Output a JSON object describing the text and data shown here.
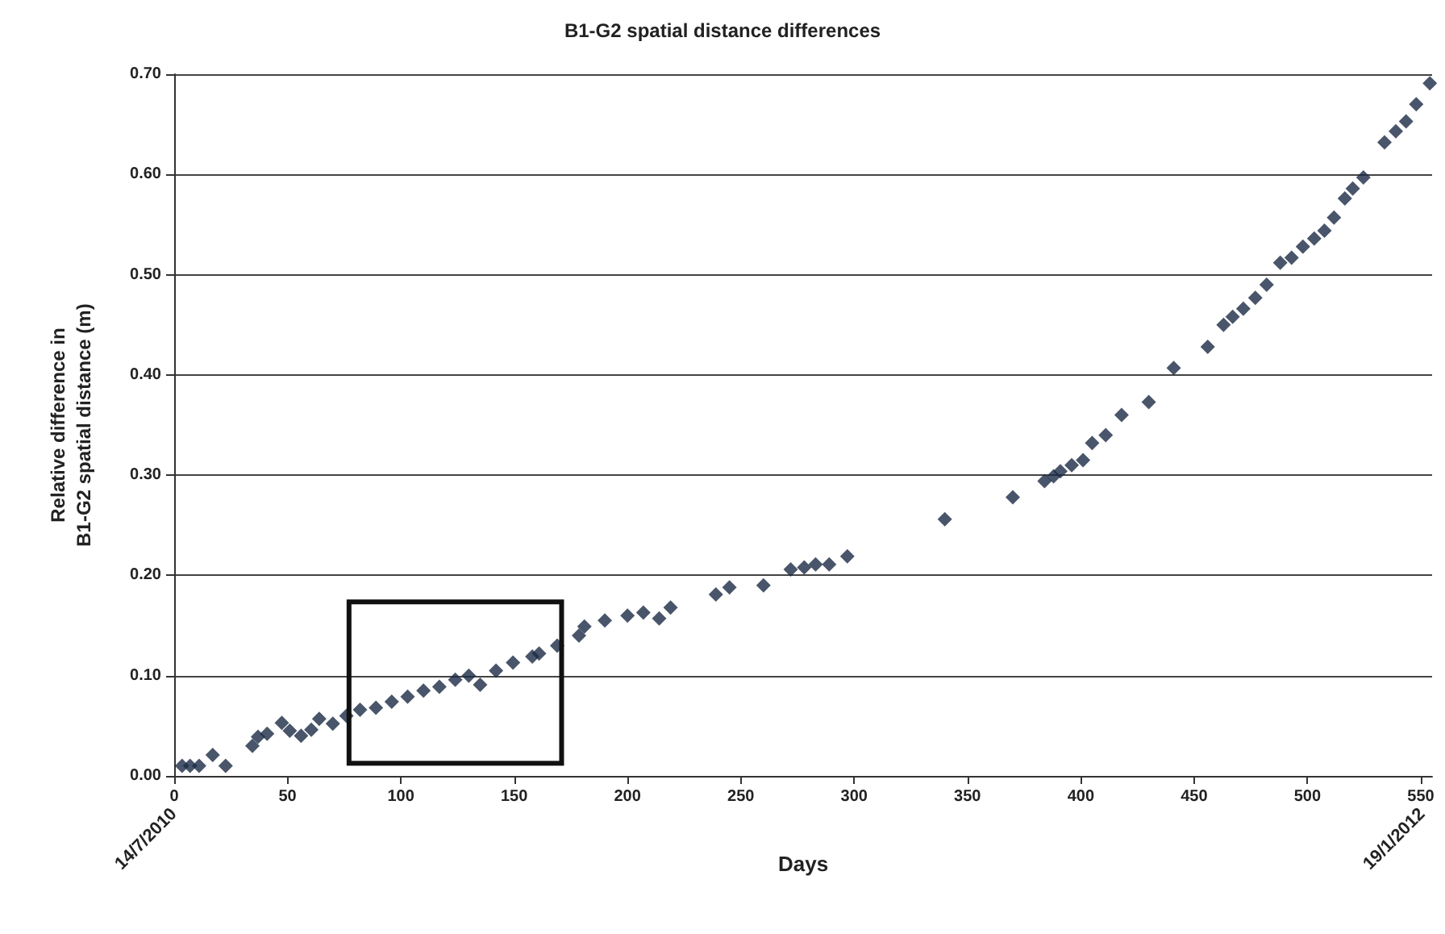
{
  "chart_data": {
    "type": "scatter",
    "title": "B1-G2 spatial distance differences",
    "xlabel": "Days",
    "ylabel": "Relative difference in B1-G2 spatial distance (m)",
    "x": [
      3.5,
      7,
      11,
      17,
      22.7,
      34.5,
      37,
      41,
      47.5,
      51,
      56,
      60.5,
      64,
      70,
      76,
      82,
      89,
      96,
      103,
      110,
      117,
      124,
      130,
      135,
      142,
      149.5,
      158,
      161,
      169,
      178.6,
      181,
      190,
      200,
      207,
      214,
      219,
      239,
      245,
      260,
      272,
      278,
      283,
      289,
      297,
      340,
      370,
      384,
      388,
      391,
      396,
      401,
      405,
      411,
      418,
      430,
      441,
      456,
      463,
      467,
      471.7,
      477,
      482,
      488,
      493,
      498,
      503,
      507.5,
      511.7,
      516.5,
      520,
      524.7,
      534,
      539,
      543.5,
      548,
      554
    ],
    "values": [
      0.01,
      0.01,
      0.01,
      0.021,
      0.01,
      0.03,
      0.039,
      0.042,
      0.053,
      0.045,
      0.04,
      0.046,
      0.057,
      0.052,
      0.06,
      0.066,
      0.068,
      0.074,
      0.079,
      0.085,
      0.089,
      0.096,
      0.1,
      0.091,
      0.105,
      0.113,
      0.119,
      0.122,
      0.13,
      0.14,
      0.149,
      0.155,
      0.16,
      0.163,
      0.157,
      0.168,
      0.181,
      0.188,
      0.19,
      0.206,
      0.208,
      0.211,
      0.211,
      0.219,
      0.256,
      0.278,
      0.294,
      0.299,
      0.304,
      0.31,
      0.315,
      0.332,
      0.34,
      0.36,
      0.373,
      0.407,
      0.428,
      0.45,
      0.458,
      0.466,
      0.477,
      0.49,
      0.512,
      0.517,
      0.528,
      0.536,
      0.544,
      0.557,
      0.576,
      0.586,
      0.597,
      0.632,
      0.643,
      0.653,
      0.67,
      0.691
    ],
    "color": "#1c2a45",
    "marker": "diamond",
    "grid": "y",
    "xlim": [
      0,
      555
    ],
    "xticks": [
      0,
      50,
      100,
      150,
      200,
      250,
      300,
      350,
      400,
      450,
      500,
      550
    ],
    "ylim": [
      0,
      0.7
    ],
    "yticks": [
      {
        "value": 0,
        "label": "0.00"
      },
      {
        "value": 0.1,
        "label": "0.10"
      },
      {
        "value": 0.2,
        "label": "0.20"
      },
      {
        "value": 0.3,
        "label": "0.30"
      },
      {
        "value": 0.4,
        "label": "0.40"
      },
      {
        "value": 0.5,
        "label": "0.50"
      },
      {
        "value": 0.6,
        "label": "0.60"
      },
      {
        "value": 0.7,
        "label": "0.70"
      }
    ],
    "annotations": [
      "14/7/2010",
      "19/1/2012"
    ]
  }
}
